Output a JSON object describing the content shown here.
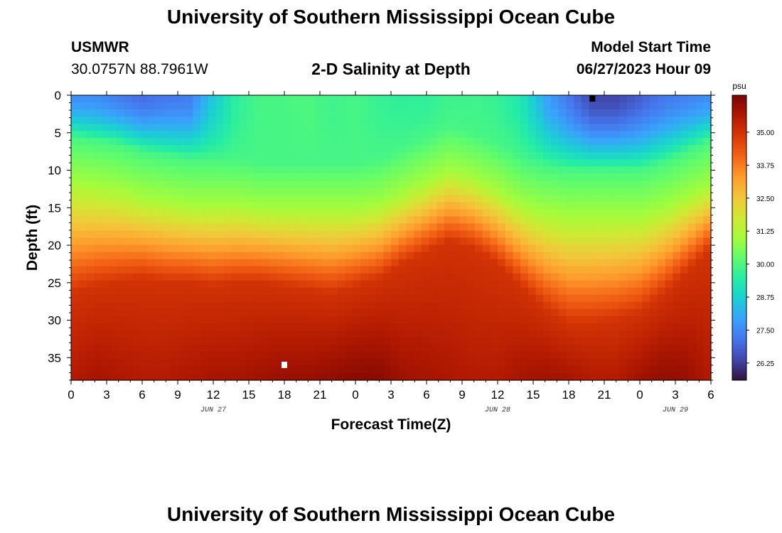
{
  "page": {
    "title": "University of Southern Mississippi Ocean Cube",
    "footer_title": "University of Southern Mississippi Ocean Cube"
  },
  "station": {
    "name": "USMWR",
    "coords": "30.0757N  88.7961W"
  },
  "model": {
    "label": "Model Start Time",
    "start": "06/27/2023 Hour 09"
  },
  "chart_data": {
    "type": "heatmap",
    "title": "2-D Salinity at Depth",
    "xlabel": "Forecast Time(Z)",
    "ylabel": "Depth (ft)",
    "x_tick_labels": [
      "0",
      "3",
      "6",
      "9",
      "12",
      "15",
      "18",
      "21",
      "0",
      "3",
      "6",
      "9",
      "12",
      "15",
      "18",
      "21",
      "0",
      "3",
      "6"
    ],
    "date_labels": [
      {
        "text": "JUN 27",
        "tick_index": 4
      },
      {
        "text": "JUN 28",
        "tick_index": 12
      },
      {
        "text": "JUN 29",
        "tick_index": 17
      }
    ],
    "x_range_hours": [
      0,
      54
    ],
    "y_ticks": [
      0,
      5,
      10,
      15,
      20,
      25,
      30,
      35
    ],
    "y_range_ft": [
      0,
      38
    ],
    "colorbar": {
      "unit": "psu",
      "min": 25.6,
      "max": 36.4,
      "ticks": [
        "35.00",
        "33.75",
        "32.50",
        "31.25",
        "30.00",
        "28.75",
        "27.50",
        "26.25"
      ]
    },
    "isohaline_depth_ft": {
      "hours": [
        0,
        2,
        4,
        6,
        8,
        10,
        12,
        14,
        16,
        18,
        20,
        22,
        24,
        26,
        28,
        30,
        32,
        34,
        36,
        38,
        40,
        42,
        44,
        46,
        48,
        50,
        52,
        54
      ],
      "s31": [
        11.5,
        12.0,
        12.5,
        13.5,
        14.0,
        14.5,
        14.5,
        14.5,
        15.0,
        15.0,
        15.0,
        15.0,
        15.0,
        14.5,
        13.0,
        11.5,
        10.0,
        11.0,
        12.5,
        14.5,
        15.5,
        16.0,
        16.0,
        16.0,
        16.0,
        15.0,
        13.5,
        12.0
      ],
      "s35": [
        26.5,
        25.5,
        25.0,
        24.5,
        25.0,
        25.0,
        25.5,
        25.0,
        25.0,
        25.5,
        26.0,
        26.5,
        25.5,
        24.5,
        22.5,
        21.0,
        19.5,
        20.5,
        22.5,
        25.5,
        28.5,
        30.5,
        30.5,
        30.0,
        29.0,
        26.5,
        23.5,
        20.5
      ]
    },
    "surface_min_psu": [
      27.6,
      27.6,
      27.3,
      27.0,
      27.2,
      27.3,
      28.6,
      29.6,
      29.9,
      29.9,
      30.0,
      29.8,
      29.9,
      29.7,
      29.6,
      29.6,
      29.8,
      29.8,
      29.7,
      29.3,
      28.0,
      27.2,
      26.4,
      26.4,
      26.8,
      27.2,
      27.4,
      27.6
    ],
    "bottom_max_psu": [
      35.6,
      35.8,
      35.7,
      35.6,
      35.6,
      35.7,
      35.8,
      35.8,
      35.9,
      36.0,
      36.0,
      36.1,
      36.2,
      36.2,
      35.9,
      35.8,
      35.7,
      35.6,
      35.6,
      35.8,
      35.9,
      35.8,
      35.6,
      35.6,
      35.9,
      36.1,
      36.0,
      35.6
    ],
    "markers": [
      {
        "hour": 18,
        "depth_ft": 36,
        "color": "#ffffff"
      },
      {
        "hour": 44,
        "depth_ft": 0,
        "color": "#000000"
      }
    ]
  },
  "colors": {
    "colormap": [
      "#30123b",
      "#4145ab",
      "#4675ed",
      "#39a2fc",
      "#1bcfd4",
      "#24eca6",
      "#61fc6c",
      "#a4fc3b",
      "#d1e834",
      "#f3c63a",
      "#fe9b2d",
      "#f36315",
      "#d93806",
      "#b11901",
      "#7a0402"
    ]
  }
}
